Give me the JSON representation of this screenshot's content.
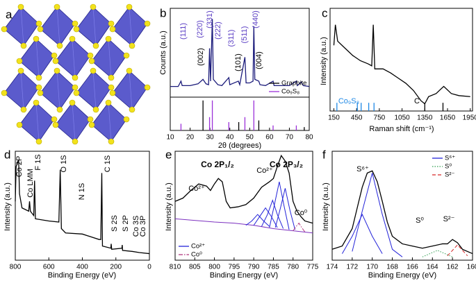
{
  "chart_data": [
    {
      "type": "image",
      "panel": "a"
    },
    {
      "type": "line",
      "panel": "b",
      "xlabel": "2θ (degrees)",
      "ylabel": "Counts (a.u.)",
      "xlim": [
        10,
        80
      ],
      "xticks": [
        10,
        20,
        30,
        40,
        50,
        60,
        70,
        80
      ],
      "ylim": [
        0,
        100
      ],
      "y2lim": [
        0,
        100
      ],
      "legend": "lower right",
      "series": [
        {
          "color": "#1a1a7a",
          "style": "solid",
          "x": [
            10,
            14,
            15.4,
            16,
            20,
            24,
            26.5,
            28,
            29.3,
            29.8,
            30.3,
            31.2,
            31.7,
            34,
            36,
            39.5,
            40,
            44.3,
            45,
            47.6,
            48.2,
            50,
            51.7,
            52.1,
            52.6,
            54.6,
            55.2,
            58,
            61.8,
            62.3,
            65,
            70,
            73.5,
            74,
            76,
            77,
            80
          ],
          "values": [
            12,
            12,
            18,
            13,
            13,
            15,
            20,
            15,
            14,
            55,
            18,
            88,
            20,
            14,
            13,
            22,
            14,
            18,
            14,
            45,
            16,
            16,
            18,
            80,
            20,
            18,
            14,
            13,
            18,
            13,
            13,
            13,
            18,
            13,
            17,
            13,
            12
          ]
        },
        {
          "name": "Graphite",
          "color": "#000000",
          "style": "stick",
          "axis": "y2",
          "x": [
            26.5,
            44.5,
            54.6,
            77.5
          ],
          "values": [
            90,
            25,
            30,
            10
          ]
        },
        {
          "name": "Co₉S₈",
          "color": "#9b30d9",
          "style": "stick",
          "axis": "y2",
          "x": [
            15.4,
            29.8,
            31.2,
            39.5,
            47.6,
            52.1,
            61.8,
            73.5
          ],
          "values": [
            20,
            40,
            90,
            25,
            40,
            90,
            15,
            15
          ]
        }
      ],
      "annotations": [
        {
          "text": "(111)",
          "color": "#5b3fc4",
          "vertical": true
        },
        {
          "text": "(220)",
          "color": "#5b3fc4",
          "vertical": true
        },
        {
          "text": "(331)",
          "color": "#5b3fc4",
          "vertical": true
        },
        {
          "text": "(222)",
          "color": "#5b3fc4",
          "vertical": true
        },
        {
          "text": "(311)",
          "color": "#5b3fc4",
          "vertical": true
        },
        {
          "text": "(511)",
          "color": "#5b3fc4",
          "vertical": true
        },
        {
          "text": "(440)",
          "color": "#5b3fc4",
          "vertical": true
        },
        {
          "text": "(002)",
          "color": "#000000",
          "vertical": true
        },
        {
          "text": "(101)",
          "color": "#000000",
          "vertical": true
        },
        {
          "text": "(004)",
          "color": "#000000",
          "vertical": true
        }
      ]
    },
    {
      "type": "line",
      "panel": "c",
      "xlabel": "Raman shift (cm⁻¹)",
      "ylabel": "Intensity (a.u.)",
      "xlim": [
        100,
        1980
      ],
      "xticks": [
        150,
        450,
        750,
        1050,
        1350,
        1650,
        1950
      ],
      "ylim": [
        0,
        100
      ],
      "series": [
        {
          "color": "#000000",
          "style": "solid",
          "x": [
            150,
            170,
            200,
            300,
            400,
            500,
            600,
            650,
            670,
            690,
            800,
            900,
            1000,
            1100,
            1200,
            1300,
            1350,
            1400,
            1500,
            1600,
            1700,
            1800,
            1950
          ],
          "values": [
            64,
            84,
            68,
            61,
            54,
            49,
            46,
            44,
            84,
            41,
            41,
            37,
            32,
            27,
            20,
            10,
            7,
            14,
            17,
            24,
            17,
            15,
            14
          ]
        },
        {
          "color": "#1e88e5",
          "style": "stick",
          "x": [
            190,
            460,
            510,
            610,
            680
          ],
          "values": [
            8,
            8,
            8,
            8,
            8
          ]
        },
        {
          "color": "#000000",
          "style": "stick",
          "x": [
            1350,
            1590
          ],
          "values": [
            8,
            8
          ]
        }
      ],
      "annotations": [
        {
          "text": "Co₉S₈",
          "color": "#1e88e5"
        },
        {
          "text": "C",
          "color": "#000000"
        }
      ]
    },
    {
      "type": "line",
      "panel": "d",
      "xlabel": "Binding Energy (eV)",
      "ylabel": "Intensity (a.u.)",
      "xlim": [
        800,
        0
      ],
      "xticks": [
        800,
        600,
        400,
        200,
        0
      ],
      "ylim": [
        0,
        100
      ],
      "series": [
        {
          "color": "#000000",
          "style": "solid",
          "x": [
            800,
            795,
            780,
            775,
            760,
            720,
            715,
            710,
            700,
            690,
            685,
            680,
            600,
            540,
            532,
            525,
            500,
            400,
            300,
            290,
            284,
            280,
            230,
            228,
            225,
            164,
            162,
            160,
            100,
            60,
            0
          ],
          "values": [
            54,
            86,
            92,
            61,
            48,
            45,
            54,
            45,
            43,
            41,
            73,
            38,
            36,
            35,
            83,
            29,
            25,
            24,
            19,
            19,
            80,
            13,
            11,
            15,
            10,
            11,
            14,
            9,
            8,
            7,
            6
          ]
        }
      ],
      "annotations": [
        {
          "text": "Co 2P",
          "color": "#000000",
          "vertical": true
        },
        {
          "text": "Co LMM",
          "color": "#000000",
          "vertical": true
        },
        {
          "text": "F 1S",
          "color": "#000000",
          "vertical": true
        },
        {
          "text": "O 1S",
          "color": "#000000",
          "vertical": true
        },
        {
          "text": "N 1S",
          "color": "#000000",
          "vertical": true
        },
        {
          "text": "C 1S",
          "color": "#000000",
          "vertical": true
        },
        {
          "text": "S 2S",
          "color": "#000000",
          "vertical": true
        },
        {
          "text": "S 2P",
          "color": "#000000",
          "vertical": true
        },
        {
          "text": "Co 3S",
          "color": "#000000",
          "vertical": true
        },
        {
          "text": "Co 3P",
          "color": "#000000",
          "vertical": true
        }
      ]
    },
    {
      "type": "line",
      "panel": "e",
      "xlabel": "Binding Energy (eV)",
      "ylabel": "Intensity (a.u.)",
      "xlim": [
        810,
        775
      ],
      "xticks": [
        810,
        805,
        800,
        795,
        790,
        785,
        780,
        775
      ],
      "ylim": [
        0,
        100
      ],
      "legend": "lower left",
      "series": [
        {
          "color": "#000000",
          "style": "solid",
          "x": [
            810,
            808,
            806,
            804,
            802,
            801,
            800,
            799,
            798,
            797,
            796,
            794,
            792,
            790,
            788,
            786,
            785,
            784,
            783,
            782,
            781,
            780,
            779,
            778,
            777,
            775
          ],
          "values": [
            54,
            57,
            64,
            70,
            68,
            64,
            70,
            75,
            72,
            54,
            48,
            49,
            51,
            57,
            67,
            72,
            75,
            86,
            96,
            91,
            80,
            54,
            45,
            40,
            36,
            34
          ]
        },
        {
          "color": "#7b2fbf",
          "style": "solid",
          "x": [
            810,
            800,
            795,
            790,
            785,
            780,
            775
          ],
          "values": [
            38,
            35,
            34,
            32,
            29,
            27,
            25
          ]
        },
        {
          "name": "Co²⁺",
          "color": "#2323d9",
          "style": "solid",
          "x": [
            792,
            790.5,
            789,
            787.5,
            786
          ],
          "values": [
            32,
            36,
            42,
            36,
            31
          ]
        },
        {
          "color": "#2323d9",
          "style": "solid",
          "x": [
            790,
            788.5,
            787,
            785.5,
            784
          ],
          "values": [
            32,
            40,
            48,
            40,
            30
          ]
        },
        {
          "color": "#2323d9",
          "style": "solid",
          "x": [
            788,
            786.5,
            785.2,
            784,
            782.5
          ],
          "values": [
            31,
            42,
            55,
            42,
            29
          ]
        },
        {
          "color": "#2323d9",
          "style": "solid",
          "x": [
            786,
            784.8,
            783.5,
            782.3,
            781
          ],
          "values": [
            30,
            50,
            72,
            50,
            28
          ]
        },
        {
          "color": "#2323d9",
          "style": "solid",
          "x": [
            784.5,
            783.2,
            782,
            780.8,
            779.5
          ],
          "values": [
            30,
            48,
            66,
            46,
            28
          ]
        },
        {
          "name": "Co⁰",
          "color": "#b0307a",
          "style": "dashdot",
          "x": [
            780,
            779.2,
            778.5,
            777.8,
            777
          ],
          "values": [
            27,
            31,
            34,
            30,
            26
          ]
        }
      ],
      "annotations": [
        {
          "text": "Co 2P₁/₂",
          "color": "#000000",
          "bold": true
        },
        {
          "text": "Co 2P₃/₂",
          "color": "#000000",
          "bold": true
        },
        {
          "text": "Co²⁺",
          "color": "#000000"
        },
        {
          "text": "Co²⁺",
          "color": "#000000"
        },
        {
          "text": "Co⁰",
          "color": "#000000"
        }
      ]
    },
    {
      "type": "line",
      "panel": "f",
      "xlabel": "Binding Energy (eV)",
      "ylabel": "Intensity (a.u.)",
      "xlim": [
        174,
        160
      ],
      "xticks": [
        174,
        172,
        170,
        168,
        166,
        164,
        162,
        160
      ],
      "ylim": [
        0,
        100
      ],
      "legend": "upper right",
      "series": [
        {
          "color": "#000000",
          "style": "solid",
          "x": [
            174,
            173,
            172,
            171.5,
            171,
            170.5,
            170,
            169.5,
            169,
            168.5,
            168,
            167,
            166,
            165,
            164,
            163,
            162.5,
            162,
            161.5,
            161,
            160
          ],
          "values": [
            10,
            13,
            29,
            48,
            67,
            80,
            82,
            72,
            54,
            35,
            22,
            15,
            13,
            11,
            13,
            15,
            15,
            19,
            16,
            10,
            6
          ]
        },
        {
          "name": "S⁶⁺",
          "color": "#2323d9",
          "style": "solid",
          "x": [
            173,
            172,
            171,
            170,
            169
          ],
          "values": [
            6,
            22,
            42,
            22,
            6
          ]
        },
        {
          "color": "#2323d9",
          "style": "solid",
          "x": [
            172,
            171,
            170,
            169,
            168,
            167
          ],
          "values": [
            8,
            45,
            80,
            42,
            10,
            3
          ]
        },
        {
          "name": "S⁰",
          "color": "#2e9e4f",
          "style": "dot",
          "x": [
            165,
            164,
            163.5,
            163,
            162
          ],
          "values": [
            3,
            7,
            9,
            7,
            3
          ]
        },
        {
          "name": "S²⁻",
          "color": "#d62728",
          "style": "dash",
          "x": [
            162.5,
            162,
            161.5,
            161,
            160.5
          ],
          "values": [
            4,
            9,
            14,
            9,
            4
          ]
        }
      ],
      "annotations": [
        {
          "text": "S⁶⁺",
          "color": "#000000"
        },
        {
          "text": "S⁰",
          "color": "#000000"
        },
        {
          "text": "S²⁻",
          "color": "#000000"
        }
      ]
    }
  ]
}
